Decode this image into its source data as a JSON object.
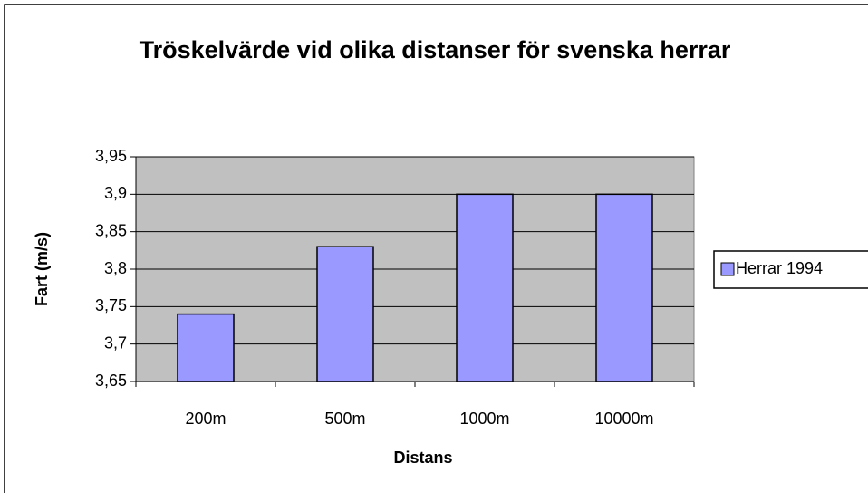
{
  "chart_data": {
    "type": "bar",
    "title": "Tröskelvärde vid olika distanser för svenska herrar",
    "x_label": "Distans",
    "y_label": "Fart (m/s)",
    "categories": [
      "200m",
      "500m",
      "1000m",
      "10000m"
    ],
    "series": [
      {
        "name": "Herrar 1994",
        "color": "#9999ff",
        "values": [
          3.74,
          3.83,
          3.9,
          3.9
        ]
      }
    ],
    "ylim": [
      3.65,
      3.95
    ],
    "yticks": [
      {
        "value": 3.65,
        "label": "3,65"
      },
      {
        "value": 3.7,
        "label": "3,7"
      },
      {
        "value": 3.75,
        "label": "3,75"
      },
      {
        "value": 3.8,
        "label": "3,8"
      },
      {
        "value": 3.85,
        "label": "3,85"
      },
      {
        "value": 3.9,
        "label": "3,9"
      },
      {
        "value": 3.95,
        "label": "3,95"
      }
    ],
    "grid": true,
    "plot_background": "#c0c0c0",
    "legend": "right"
  }
}
